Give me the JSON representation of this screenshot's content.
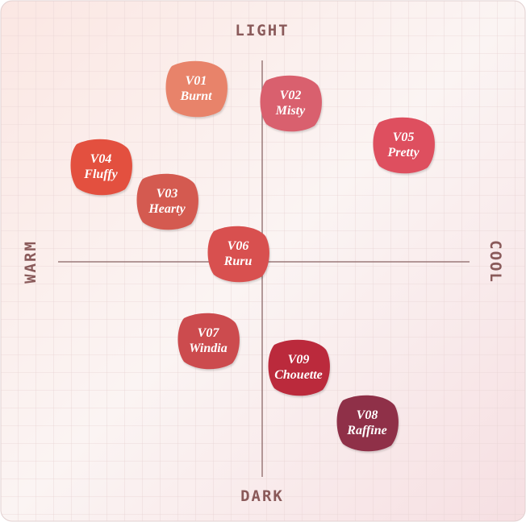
{
  "axes": {
    "top": "LIGHT",
    "bottom": "DARK",
    "left": "WARM",
    "right": "COOL"
  },
  "swatches": [
    {
      "code": "V01",
      "name": "Burnt",
      "color": "#e8836a"
    },
    {
      "code": "V02",
      "name": "Misty",
      "color": "#d9606e"
    },
    {
      "code": "V05",
      "name": "Pretty",
      "color": "#de4f5f"
    },
    {
      "code": "V04",
      "name": "Fluffy",
      "color": "#e3503f"
    },
    {
      "code": "V03",
      "name": "Hearty",
      "color": "#d45a50"
    },
    {
      "code": "V06",
      "name": "Ruru",
      "color": "#d8504f"
    },
    {
      "code": "V07",
      "name": "Windia",
      "color": "#cc4b4e"
    },
    {
      "code": "V09",
      "name": "Chouette",
      "color": "#bb2a3c"
    },
    {
      "code": "V08",
      "name": "Raffine",
      "color": "#8f3048"
    }
  ]
}
